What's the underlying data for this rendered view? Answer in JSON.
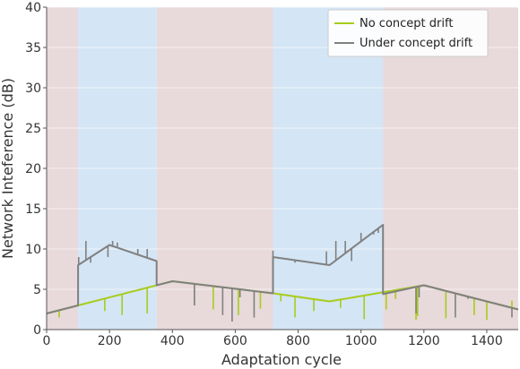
{
  "chart_data": {
    "type": "line",
    "xlabel": "Adaptation cycle",
    "ylabel": "Network Inteference (dB)",
    "xlim": [
      0,
      1500
    ],
    "ylim": [
      0,
      40
    ],
    "xticks": [
      0,
      200,
      400,
      600,
      800,
      1000,
      1200,
      1400
    ],
    "yticks": [
      0,
      5,
      10,
      15,
      20,
      25,
      30,
      35,
      40
    ],
    "background_bands": [
      {
        "from": 0,
        "to": 100,
        "color": "#e8d9da"
      },
      {
        "from": 100,
        "to": 350,
        "color": "#d4e5f5"
      },
      {
        "from": 350,
        "to": 720,
        "color": "#e8d9da"
      },
      {
        "from": 720,
        "to": 1070,
        "color": "#d4e5f5"
      },
      {
        "from": 1070,
        "to": 1500,
        "color": "#e8d9da"
      }
    ],
    "legend_position": "top-right",
    "series": [
      {
        "name": "No concept drift",
        "color": "#a8cc1c",
        "points": [
          [
            0,
            2
          ],
          [
            100,
            3
          ],
          [
            400,
            6
          ],
          [
            720,
            4.5
          ],
          [
            900,
            3.5
          ],
          [
            1200,
            5.5
          ],
          [
            1500,
            2.5
          ]
        ],
        "spikes": [
          [
            40,
            1.5
          ],
          [
            185,
            2.3
          ],
          [
            240,
            1.8
          ],
          [
            320,
            2.0
          ],
          [
            470,
            3.0
          ],
          [
            530,
            2.5
          ],
          [
            610,
            1.8
          ],
          [
            680,
            2.6
          ],
          [
            745,
            3.5
          ],
          [
            790,
            1.5
          ],
          [
            850,
            2.3
          ],
          [
            935,
            2.7
          ],
          [
            1010,
            1.3
          ],
          [
            1080,
            2.5
          ],
          [
            1110,
            3.8
          ],
          [
            1175,
            1.2
          ],
          [
            1180,
            1.7
          ],
          [
            1270,
            1.4
          ],
          [
            1360,
            1.8
          ],
          [
            1400,
            1.2
          ],
          [
            1460,
            2.8
          ],
          [
            1480,
            3.6
          ]
        ]
      },
      {
        "name": "Under concept drift",
        "color": "#808080",
        "points": [
          [
            0,
            2
          ],
          [
            100,
            3
          ],
          [
            100,
            8
          ],
          [
            200,
            10.5
          ],
          [
            350,
            8.5
          ],
          [
            350,
            5.5
          ],
          [
            400,
            6
          ],
          [
            720,
            4.5
          ],
          [
            720,
            9
          ],
          [
            900,
            8
          ],
          [
            1070,
            13
          ],
          [
            1070,
            4.4
          ],
          [
            1200,
            5.5
          ],
          [
            1500,
            2.5
          ]
        ],
        "spikes": [
          [
            102,
            9.0
          ],
          [
            125,
            11.0
          ],
          [
            140,
            8.3
          ],
          [
            195,
            9.0
          ],
          [
            210,
            11.0
          ],
          [
            225,
            10.8
          ],
          [
            290,
            10.0
          ],
          [
            320,
            10.0
          ],
          [
            720,
            9.8
          ],
          [
            790,
            8.3
          ],
          [
            890,
            9.7
          ],
          [
            920,
            11.0
          ],
          [
            950,
            11.0
          ],
          [
            970,
            8.5
          ],
          [
            1000,
            12.0
          ],
          [
            1040,
            11.8
          ],
          [
            1055,
            12.0
          ],
          [
            470,
            3.0
          ],
          [
            560,
            1.8
          ],
          [
            590,
            1.0
          ],
          [
            615,
            4.0
          ],
          [
            660,
            1.5
          ],
          [
            1175,
            2.0
          ],
          [
            1185,
            4.0
          ],
          [
            1300,
            1.5
          ],
          [
            1340,
            3.8
          ],
          [
            1480,
            1.5
          ]
        ]
      }
    ]
  }
}
